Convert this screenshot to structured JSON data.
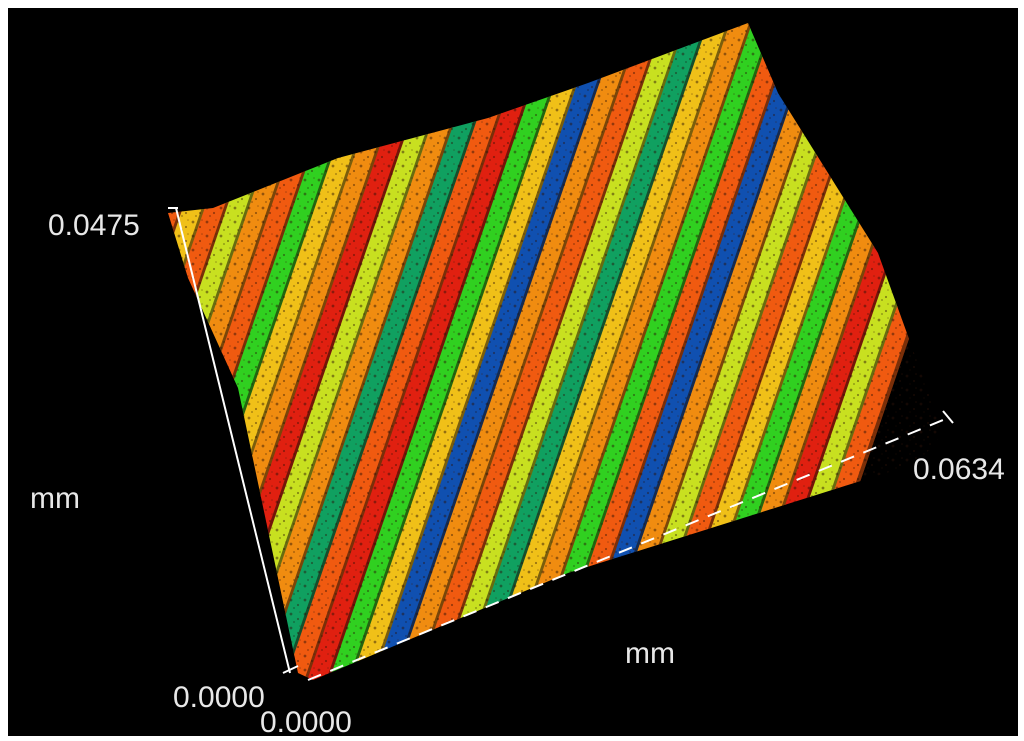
{
  "axes": {
    "y_axis": {
      "min_label": "0.0000",
      "max_label": "0.0475",
      "unit": "mm"
    },
    "x_axis": {
      "min_label": "0.0000",
      "max_label": "0.0634",
      "unit": "mm"
    }
  },
  "colors": {
    "background": "#000000",
    "frame": "#ffffff",
    "axis_line": "#ffffff",
    "surface_palette": [
      "#e02010",
      "#f05a10",
      "#f08c10",
      "#f0c018",
      "#c8e020",
      "#30d020",
      "#10a060",
      "#1050b0"
    ]
  }
}
